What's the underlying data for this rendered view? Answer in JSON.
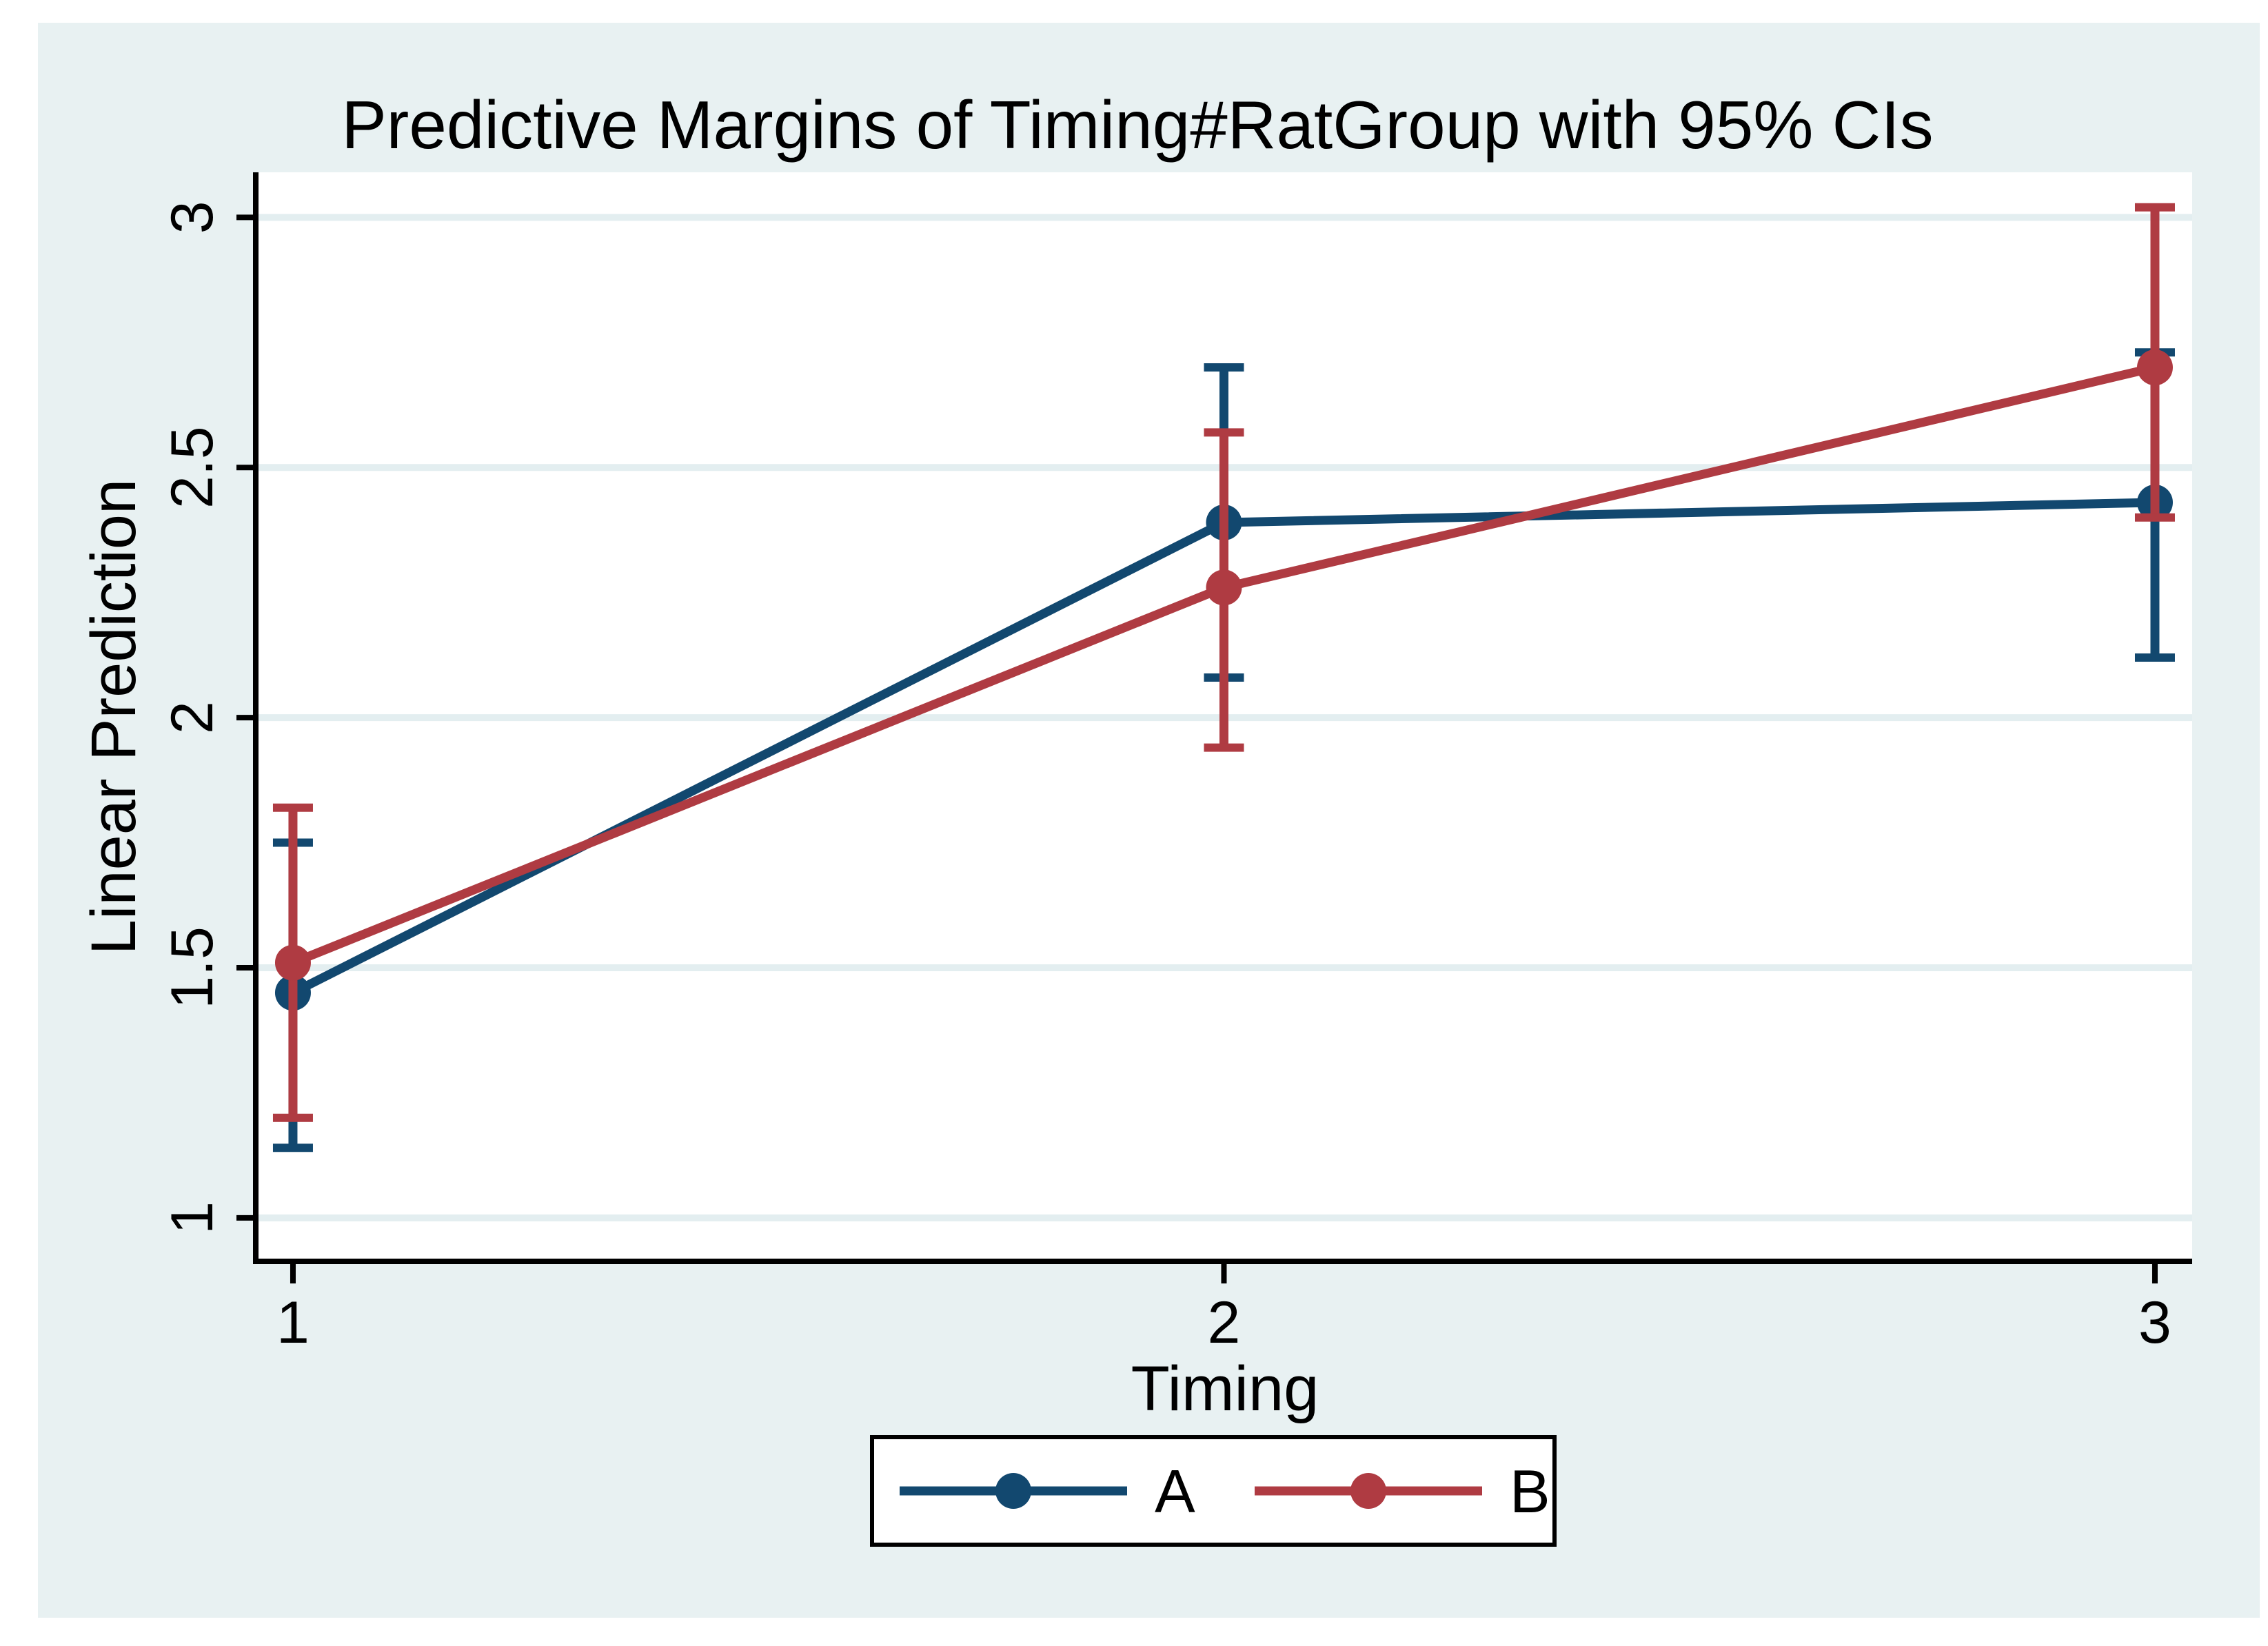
{
  "colors": {
    "canvas_bg": "#E8F1F2",
    "plot_bg": "#FFFFFF",
    "gridline": "#E3EEF0",
    "axis": "#000000",
    "title": "#13294E",
    "legend_border": "#000000",
    "legend_bg": "#FFFFFF"
  },
  "chart_data": {
    "type": "line",
    "title": "Predictive Margins of Timing#RatGroup with 95% CIs",
    "xlabel": "Timing",
    "ylabel": "Linear Prediction",
    "x": [
      1,
      2,
      3
    ],
    "xlim": [
      0.963,
      3.04
    ],
    "ylim": [
      0.913,
      3.09
    ],
    "grid": true,
    "x_ticks": [
      {
        "value": 1,
        "label": "1"
      },
      {
        "value": 2,
        "label": "2"
      },
      {
        "value": 3,
        "label": "3"
      }
    ],
    "y_ticks": [
      {
        "value": 1,
        "label": "1"
      },
      {
        "value": 1.5,
        "label": "1.5"
      },
      {
        "value": 2,
        "label": "2"
      },
      {
        "value": 2.5,
        "label": "2.5"
      },
      {
        "value": 3,
        "label": "3"
      }
    ],
    "series": [
      {
        "name": "A",
        "color": "#12486F",
        "values": [
          1.45,
          2.39,
          2.43
        ],
        "ci_low": [
          1.14,
          2.08,
          2.12
        ],
        "ci_high": [
          1.75,
          2.7,
          2.73
        ]
      },
      {
        "name": "B",
        "color": "#AF3B42",
        "values": [
          1.51,
          2.26,
          2.7
        ],
        "ci_low": [
          1.2,
          1.94,
          2.4
        ],
        "ci_high": [
          1.82,
          2.57,
          3.02
        ]
      }
    ],
    "legend": {
      "position": "bottom",
      "entries": [
        "A",
        "B"
      ]
    }
  }
}
